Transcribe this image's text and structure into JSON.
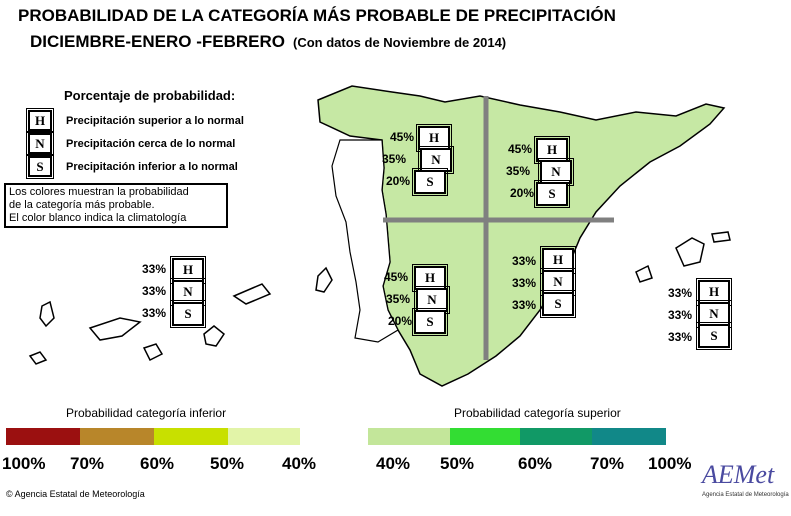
{
  "title_line1": "PROBABILIDAD DE LA CATEGORÍA MÁS PROBABLE DE PRECIPITACIÓN",
  "title_line2": "DICIEMBRE-ENERO -FEBRERO",
  "title_sub": "(Con datos de Noviembre de 2014)",
  "legend": {
    "title": "Porcentaje de probabilidad:",
    "items": [
      {
        "letter": "H",
        "label": "Precipitación superior a lo normal"
      },
      {
        "letter": "N",
        "label": "Precipitación cerca de lo normal"
      },
      {
        "letter": "S",
        "label": "Precipitación inferior a lo normal"
      }
    ]
  },
  "note": [
    "Los colores muestran la probabilidad",
    "de la categoría más probable.",
    "El color blanco indica la climatología"
  ],
  "regions": {
    "northwest": {
      "H": "45%",
      "N": "35%",
      "S": "20%"
    },
    "northeast": {
      "H": "45%",
      "N": "35%",
      "S": "20%"
    },
    "southwest": {
      "H": "45%",
      "N": "35%",
      "S": "20%"
    },
    "southeast": {
      "H": "33%",
      "N": "33%",
      "S": "33%"
    },
    "canarias": {
      "H": "33%",
      "N": "33%",
      "S": "33%"
    },
    "baleares": {
      "H": "33%",
      "N": "33%",
      "S": "33%"
    }
  },
  "letters": {
    "H": "H",
    "N": "N",
    "S": "S"
  },
  "scales": {
    "lower": {
      "title": "Probabilidad categoría inferior",
      "ticks": [
        "100%",
        "70%",
        "60%",
        "50%",
        "40%"
      ],
      "colors": [
        "#9b1010",
        "#b8862a",
        "#c8e000",
        "#e2f4a8"
      ]
    },
    "upper": {
      "title": "Probabilidad categoría superior",
      "ticks": [
        "40%",
        "50%",
        "60%",
        "70%",
        "100%"
      ],
      "colors": [
        "#c3e69a",
        "#33dd33",
        "#119966",
        "#118888"
      ]
    }
  },
  "colors": {
    "land": "#c6e8a4",
    "divider": "#808080"
  },
  "credit": "© Agencia Estatal de Meteorología",
  "logo": {
    "text": "AEMet",
    "sub": "Agencia Estatal de Meteorología"
  }
}
